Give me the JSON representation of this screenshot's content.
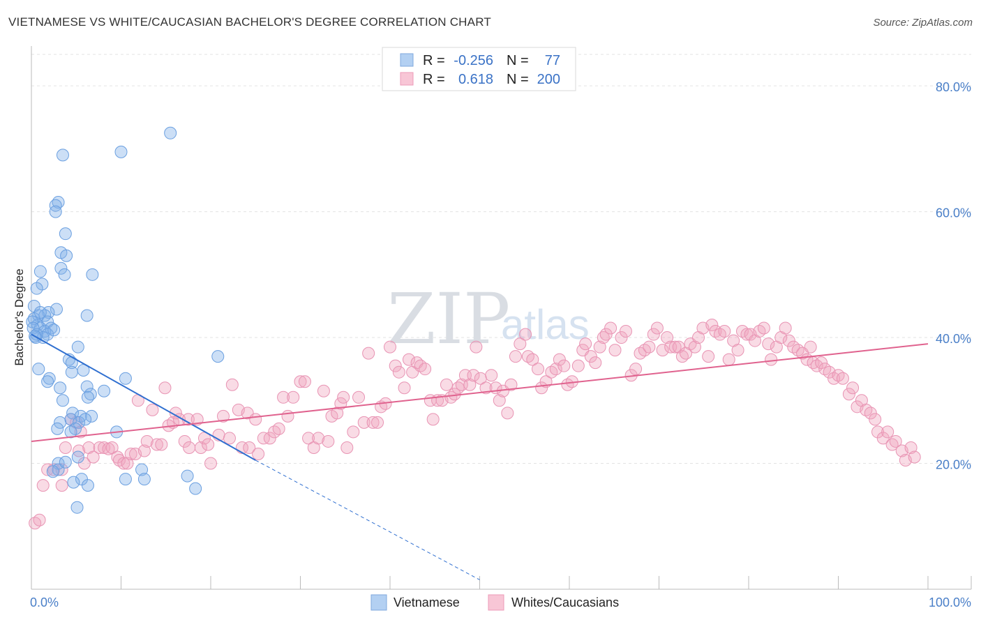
{
  "title": "VIETNAMESE VS WHITE/CAUCASIAN BACHELOR'S DEGREE CORRELATION CHART",
  "source": "Source: ZipAtlas.com",
  "watermark": {
    "zip": "ZIP",
    "atlas": "atlas"
  },
  "chart_data": {
    "type": "scatter",
    "xlabel": "",
    "ylabel": "Bachelor's Degree",
    "xlim": [
      0,
      100
    ],
    "ylim": [
      0,
      85
    ],
    "x_tick_labels": [
      "0.0%",
      "100.0%"
    ],
    "y_ticks": [
      20,
      40,
      60,
      80
    ],
    "y_tick_labels": [
      "20.0%",
      "40.0%",
      "60.0%",
      "80.0%"
    ],
    "grid": true,
    "legend": {
      "position": "top-center",
      "entries": [
        {
          "name": "Vietnamese",
          "r_label": "R =",
          "r_value": "-0.256",
          "n_label": "N =",
          "n_value": "77"
        },
        {
          "name": "Whites/Caucasians",
          "r_label": "R =",
          "r_value": "0.618",
          "n_label": "N =",
          "n_value": "200"
        }
      ]
    },
    "series": [
      {
        "name": "Vietnamese",
        "color": "#7fb0e8",
        "line_color": "#2f6fd0",
        "trend": {
          "x0": 0,
          "y0": 40.5,
          "x1": 25.0,
          "y1": 20.5,
          "dash_to_x": 50.0,
          "dash_to_y": 1.5
        },
        "points": [
          [
            15.5,
            72.5
          ],
          [
            10.0,
            69.5
          ],
          [
            3.5,
            69.0
          ],
          [
            3.0,
            61.5
          ],
          [
            2.7,
            61.0
          ],
          [
            2.7,
            60.0
          ],
          [
            3.8,
            56.5
          ],
          [
            3.3,
            53.5
          ],
          [
            3.9,
            53.0
          ],
          [
            3.3,
            51.0
          ],
          [
            1.0,
            50.5
          ],
          [
            3.7,
            50.0
          ],
          [
            6.8,
            50.0
          ],
          [
            1.2,
            48.5
          ],
          [
            0.6,
            47.8
          ],
          [
            0.3,
            45.0
          ],
          [
            2.8,
            44.5
          ],
          [
            1.9,
            44.0
          ],
          [
            6.2,
            43.5
          ],
          [
            0.3,
            43.0
          ],
          [
            0.8,
            43.5
          ],
          [
            1.5,
            43.5
          ],
          [
            0.7,
            42.0
          ],
          [
            1.8,
            42.5
          ],
          [
            0.1,
            42.5
          ],
          [
            1.0,
            41.5
          ],
          [
            0.2,
            41.5
          ],
          [
            2.2,
            41.5
          ],
          [
            1.5,
            41.0
          ],
          [
            1.8,
            40.5
          ],
          [
            0.5,
            40.0
          ],
          [
            1.3,
            40.0
          ],
          [
            0.6,
            40.5
          ],
          [
            5.2,
            38.5
          ],
          [
            20.8,
            37.0
          ],
          [
            4.2,
            36.5
          ],
          [
            4.5,
            36.0
          ],
          [
            0.8,
            35.0
          ],
          [
            5.8,
            34.8
          ],
          [
            4.5,
            34.5
          ],
          [
            2.0,
            33.5
          ],
          [
            10.5,
            33.5
          ],
          [
            1.8,
            33.0
          ],
          [
            6.2,
            32.2
          ],
          [
            8.1,
            31.5
          ],
          [
            3.2,
            32.0
          ],
          [
            6.6,
            31.0
          ],
          [
            6.3,
            30.5
          ],
          [
            3.5,
            30.0
          ],
          [
            4.6,
            28.0
          ],
          [
            5.5,
            27.5
          ],
          [
            6.7,
            27.5
          ],
          [
            4.4,
            27.0
          ],
          [
            5.3,
            26.5
          ],
          [
            3.2,
            26.5
          ],
          [
            2.9,
            25.5
          ],
          [
            4.9,
            25.5
          ],
          [
            9.5,
            25.0
          ],
          [
            4.4,
            25.0
          ],
          [
            3.0,
            20.0
          ],
          [
            5.2,
            21.0
          ],
          [
            3.0,
            19.0
          ],
          [
            2.4,
            18.7
          ],
          [
            12.3,
            19.0
          ],
          [
            17.4,
            18.0
          ],
          [
            10.5,
            17.5
          ],
          [
            12.6,
            17.5
          ],
          [
            5.6,
            17.5
          ],
          [
            4.7,
            17.0
          ],
          [
            6.3,
            16.5
          ],
          [
            18.3,
            16.0
          ],
          [
            5.1,
            13.0
          ],
          [
            3.8,
            20.2
          ],
          [
            1.0,
            44.0
          ],
          [
            0.4,
            40.2
          ],
          [
            2.5,
            41.2
          ],
          [
            6.0,
            27.0
          ]
        ]
      },
      {
        "name": "Whites/Caucasians",
        "color": "#f1a5bf",
        "line_color": "#e0628e",
        "trend": {
          "x0": 0,
          "y0": 23.5,
          "x1": 100,
          "y1": 39.0
        },
        "points": [
          [
            0.4,
            10.5
          ],
          [
            0.9,
            11.0
          ],
          [
            1.3,
            16.5
          ],
          [
            1.8,
            19.0
          ],
          [
            2.5,
            19.0
          ],
          [
            3.4,
            19.0
          ],
          [
            3.4,
            16.5
          ],
          [
            3.8,
            22.5
          ],
          [
            4.4,
            27.0
          ],
          [
            5.0,
            26.5
          ],
          [
            5.3,
            22.0
          ],
          [
            5.5,
            25.0
          ],
          [
            5.9,
            20.0
          ],
          [
            6.4,
            22.5
          ],
          [
            6.9,
            21.0
          ],
          [
            7.6,
            22.5
          ],
          [
            8.1,
            22.5
          ],
          [
            8.6,
            22.3
          ],
          [
            9.0,
            22.5
          ],
          [
            9.6,
            21.0
          ],
          [
            9.8,
            20.5
          ],
          [
            10.3,
            20.0
          ],
          [
            10.7,
            20.0
          ],
          [
            11.1,
            21.5
          ],
          [
            11.6,
            21.5
          ],
          [
            11.9,
            30.0
          ],
          [
            12.6,
            22.0
          ],
          [
            12.9,
            23.5
          ],
          [
            13.5,
            28.5
          ],
          [
            14.0,
            23.0
          ],
          [
            14.5,
            23.0
          ],
          [
            14.9,
            32.0
          ],
          [
            15.3,
            26.0
          ],
          [
            15.8,
            26.5
          ],
          [
            16.1,
            28.0
          ],
          [
            16.5,
            27.0
          ],
          [
            17.1,
            23.5
          ],
          [
            17.5,
            27.0
          ],
          [
            17.6,
            22.5
          ],
          [
            18.5,
            27.0
          ],
          [
            18.9,
            22.5
          ],
          [
            19.3,
            24.0
          ],
          [
            19.7,
            23.0
          ],
          [
            20.0,
            20.0
          ],
          [
            20.9,
            24.5
          ],
          [
            21.4,
            27.5
          ],
          [
            22.1,
            24.0
          ],
          [
            22.4,
            32.5
          ],
          [
            23.1,
            28.5
          ],
          [
            23.5,
            22.5
          ],
          [
            24.1,
            28.0
          ],
          [
            24.3,
            22.5
          ],
          [
            25.0,
            27.0
          ],
          [
            25.3,
            21.5
          ],
          [
            25.9,
            24.0
          ],
          [
            26.6,
            24.0
          ],
          [
            27.1,
            25.0
          ],
          [
            27.6,
            25.5
          ],
          [
            28.1,
            30.5
          ],
          [
            28.6,
            27.5
          ],
          [
            29.2,
            30.5
          ],
          [
            30.0,
            33.0
          ],
          [
            30.5,
            33.0
          ],
          [
            30.9,
            24.0
          ],
          [
            31.5,
            22.5
          ],
          [
            32.0,
            24.0
          ],
          [
            32.6,
            31.5
          ],
          [
            33.1,
            23.5
          ],
          [
            33.5,
            27.5
          ],
          [
            34.1,
            28.0
          ],
          [
            34.5,
            29.5
          ],
          [
            34.8,
            30.5
          ],
          [
            35.2,
            22.5
          ],
          [
            35.9,
            25.0
          ],
          [
            36.5,
            30.5
          ],
          [
            37.1,
            26.5
          ],
          [
            37.6,
            37.5
          ],
          [
            38.1,
            26.5
          ],
          [
            38.6,
            26.5
          ],
          [
            39.0,
            29.0
          ],
          [
            39.5,
            29.5
          ],
          [
            40.0,
            38.5
          ],
          [
            40.6,
            35.5
          ],
          [
            41.0,
            34.5
          ],
          [
            41.6,
            32.0
          ],
          [
            42.1,
            36.5
          ],
          [
            42.5,
            34.5
          ],
          [
            43.0,
            36.0
          ],
          [
            43.4,
            35.5
          ],
          [
            43.9,
            35.0
          ],
          [
            44.5,
            30.0
          ],
          [
            44.8,
            27.0
          ],
          [
            45.3,
            30.0
          ],
          [
            45.8,
            30.0
          ],
          [
            46.3,
            32.5
          ],
          [
            46.8,
            30.5
          ],
          [
            47.2,
            31.0
          ],
          [
            47.6,
            32.0
          ],
          [
            48.0,
            32.5
          ],
          [
            48.4,
            34.0
          ],
          [
            48.9,
            32.5
          ],
          [
            49.3,
            34.0
          ],
          [
            49.6,
            38.5
          ],
          [
            50.1,
            33.5
          ],
          [
            50.7,
            32.0
          ],
          [
            51.3,
            34.0
          ],
          [
            51.8,
            32.0
          ],
          [
            52.2,
            30.0
          ],
          [
            52.6,
            31.5
          ],
          [
            53.1,
            28.0
          ],
          [
            53.5,
            32.5
          ],
          [
            54.0,
            37.0
          ],
          [
            54.5,
            39.0
          ],
          [
            55.1,
            40.5
          ],
          [
            55.4,
            37.0
          ],
          [
            55.9,
            36.5
          ],
          [
            56.5,
            35.0
          ],
          [
            56.9,
            32.0
          ],
          [
            57.4,
            33.0
          ],
          [
            58.0,
            34.5
          ],
          [
            58.5,
            35.0
          ],
          [
            58.9,
            36.5
          ],
          [
            59.4,
            35.5
          ],
          [
            59.8,
            32.5
          ],
          [
            60.3,
            33.0
          ],
          [
            61.0,
            35.5
          ],
          [
            61.5,
            38.0
          ],
          [
            61.8,
            39.0
          ],
          [
            62.4,
            37.0
          ],
          [
            62.9,
            36.0
          ],
          [
            63.4,
            38.5
          ],
          [
            63.8,
            40.0
          ],
          [
            64.1,
            40.5
          ],
          [
            64.6,
            41.5
          ],
          [
            65.1,
            38.0
          ],
          [
            65.8,
            40.0
          ],
          [
            66.3,
            41.0
          ],
          [
            66.9,
            34.0
          ],
          [
            67.4,
            35.0
          ],
          [
            67.9,
            37.5
          ],
          [
            68.4,
            38.0
          ],
          [
            68.9,
            38.5
          ],
          [
            69.4,
            40.5
          ],
          [
            69.8,
            41.5
          ],
          [
            70.4,
            38.0
          ],
          [
            70.9,
            40.0
          ],
          [
            71.3,
            38.5
          ],
          [
            71.8,
            38.5
          ],
          [
            72.2,
            38.5
          ],
          [
            72.6,
            37.0
          ],
          [
            73.0,
            37.5
          ],
          [
            73.5,
            39.0
          ],
          [
            74.0,
            38.5
          ],
          [
            74.4,
            40.0
          ],
          [
            74.9,
            41.5
          ],
          [
            75.5,
            37.0
          ],
          [
            75.9,
            42.0
          ],
          [
            76.3,
            41.0
          ],
          [
            76.8,
            40.5
          ],
          [
            77.3,
            41.0
          ],
          [
            77.8,
            36.5
          ],
          [
            78.3,
            39.5
          ],
          [
            78.8,
            38.0
          ],
          [
            79.3,
            41.0
          ],
          [
            79.8,
            40.5
          ],
          [
            80.2,
            40.5
          ],
          [
            80.7,
            39.5
          ],
          [
            81.2,
            41.0
          ],
          [
            81.7,
            41.5
          ],
          [
            82.2,
            39.0
          ],
          [
            82.5,
            36.5
          ],
          [
            83.1,
            38.5
          ],
          [
            83.6,
            40.0
          ],
          [
            84.1,
            41.5
          ],
          [
            84.5,
            39.5
          ],
          [
            85.0,
            38.5
          ],
          [
            85.5,
            38.0
          ],
          [
            86.0,
            37.5
          ],
          [
            86.5,
            36.5
          ],
          [
            86.9,
            38.5
          ],
          [
            87.2,
            36.0
          ],
          [
            87.6,
            35.5
          ],
          [
            88.1,
            36.0
          ],
          [
            88.5,
            35.0
          ],
          [
            89.0,
            34.5
          ],
          [
            89.5,
            33.5
          ],
          [
            90.0,
            34.0
          ],
          [
            90.5,
            33.5
          ],
          [
            91.2,
            31.0
          ],
          [
            91.6,
            32.0
          ],
          [
            92.1,
            29.0
          ],
          [
            92.6,
            30.0
          ],
          [
            93.1,
            28.5
          ],
          [
            93.6,
            28.0
          ],
          [
            94.1,
            27.0
          ],
          [
            94.4,
            25.0
          ],
          [
            95.0,
            24.0
          ],
          [
            95.5,
            25.0
          ],
          [
            96.0,
            23.0
          ],
          [
            96.4,
            23.5
          ],
          [
            97.1,
            22.0
          ],
          [
            97.5,
            20.5
          ],
          [
            98.1,
            22.5
          ],
          [
            98.5,
            21.0
          ]
        ]
      }
    ]
  }
}
